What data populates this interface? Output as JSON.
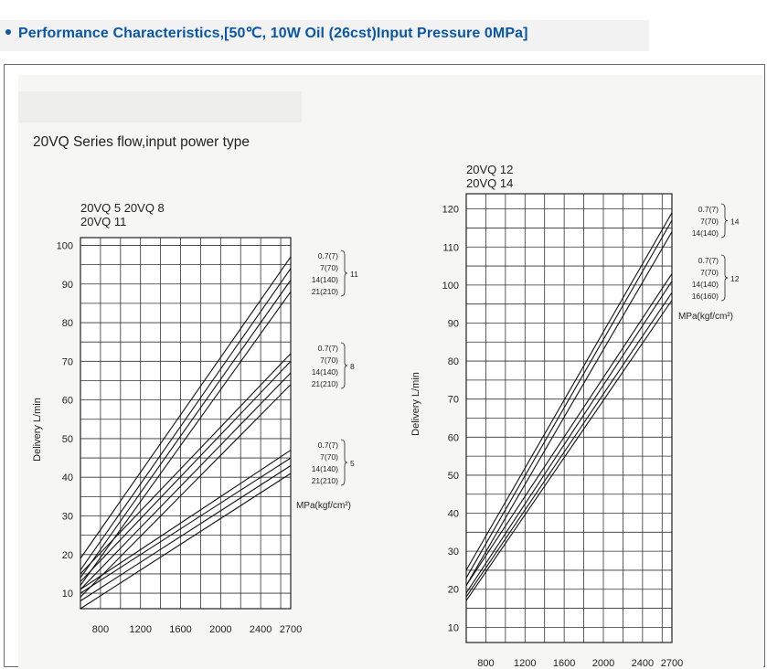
{
  "header": {
    "title": "Performance Characteristics,[50℃,  10W Oil (26cst)Input Pressure 0MPa]",
    "accent_color": "#0a57a6",
    "bullet_icon": "bullet-dot"
  },
  "figure": {
    "title": "20VQ Series flow,input power type"
  },
  "chart_data": [
    {
      "type": "line",
      "title_lines": [
        "20VQ 5   20VQ 8",
        "20VQ 11"
      ],
      "ylabel": "Delivery L/min",
      "xlabel": "",
      "x_ticks": [
        800,
        1200,
        1600,
        2000,
        2400,
        2700
      ],
      "y_ticks": [
        10,
        20,
        30,
        40,
        50,
        60,
        70,
        80,
        90,
        100
      ],
      "xlim": [
        600,
        2700
      ],
      "ylim": [
        6,
        102
      ],
      "grid": true,
      "unit_label": "MPa(kgf/cm²)",
      "groups": [
        {
          "name": "11",
          "series": [
            {
              "name": "0.7(7)",
              "x": [
                600,
                2700
              ],
              "y": [
                19,
                97
              ]
            },
            {
              "name": "7(70)",
              "x": [
                600,
                2700
              ],
              "y": [
                16,
                94
              ]
            },
            {
              "name": "14(140)",
              "x": [
                600,
                2700
              ],
              "y": [
                14,
                91
              ]
            },
            {
              "name": "21(210)",
              "x": [
                600,
                2700
              ],
              "y": [
                12,
                88
              ]
            }
          ]
        },
        {
          "name": "8",
          "series": [
            {
              "name": "0.7(7)",
              "x": [
                600,
                2700
              ],
              "y": [
                15,
                72
              ]
            },
            {
              "name": "7(70)",
              "x": [
                600,
                2700
              ],
              "y": [
                13,
                70
              ]
            },
            {
              "name": "14(140)",
              "x": [
                600,
                2700
              ],
              "y": [
                11,
                67
              ]
            },
            {
              "name": "21(210)",
              "x": [
                600,
                2700
              ],
              "y": [
                9,
                64
              ]
            }
          ]
        },
        {
          "name": "5",
          "series": [
            {
              "name": "0.7(7)",
              "x": [
                600,
                2700
              ],
              "y": [
                11,
                47
              ]
            },
            {
              "name": "7(70)",
              "x": [
                600,
                2700
              ],
              "y": [
                10,
                45
              ]
            },
            {
              "name": "14(140)",
              "x": [
                600,
                2700
              ],
              "y": [
                8,
                43
              ]
            },
            {
              "name": "21(210)",
              "x": [
                600,
                2700
              ],
              "y": [
                6,
                41
              ]
            }
          ]
        }
      ]
    },
    {
      "type": "line",
      "title_lines": [
        "20VQ 12",
        "20VQ 14"
      ],
      "ylabel": "Delivery L/min",
      "xlabel": "",
      "x_ticks": [
        800,
        1200,
        1600,
        2000,
        2400,
        2700
      ],
      "y_ticks": [
        10,
        20,
        30,
        40,
        50,
        60,
        70,
        80,
        90,
        100,
        110,
        120
      ],
      "xlim": [
        600,
        2700
      ],
      "ylim": [
        6,
        124
      ],
      "grid": true,
      "unit_label": "MPa(kgf/cm²)",
      "groups": [
        {
          "name": "14",
          "series": [
            {
              "name": "0.7(7)",
              "x": [
                600,
                2700
              ],
              "y": [
                25,
                119
              ]
            },
            {
              "name": "7(70)",
              "x": [
                600,
                2700
              ],
              "y": [
                23,
                117
              ]
            },
            {
              "name": "14(140)",
              "x": [
                600,
                2700
              ],
              "y": [
                21,
                114
              ]
            }
          ]
        },
        {
          "name": "12",
          "series": [
            {
              "name": "0.7(7)",
              "x": [
                600,
                2700
              ],
              "y": [
                21,
                103
              ]
            },
            {
              "name": "7(70)",
              "x": [
                600,
                2700
              ],
              "y": [
                19,
                101
              ]
            },
            {
              "name": "14(140)",
              "x": [
                600,
                2700
              ],
              "y": [
                18,
                98
              ]
            },
            {
              "name": "16(160)",
              "x": [
                600,
                2700
              ],
              "y": [
                17,
                96
              ]
            }
          ]
        }
      ]
    }
  ]
}
